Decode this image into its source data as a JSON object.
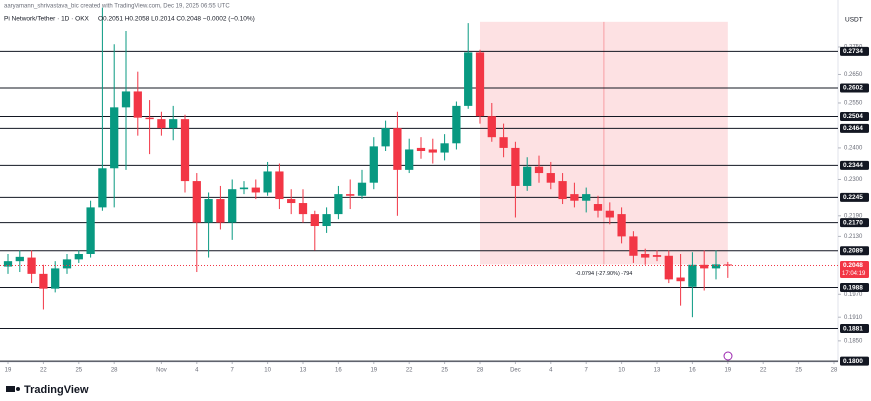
{
  "chart_data": {
    "type": "candlestick",
    "watermark": "aaryamann_shrivastava_bic created with TradingView.com, Dec 19, 2025 06:55 UTC",
    "title": "Pi Network/Tether · 1D · OKX",
    "quote": "O0.2051 H0.2058 L0.2014 C0.2048 −0.0002 (−0.10%)",
    "currency": "USDT",
    "brand": "TradingView",
    "log_scale": true,
    "up_color": "#089981",
    "down_color": "#f23645",
    "ylim": [
      0.1798,
      0.293
    ],
    "yticks": [
      {
        "value": 0.275,
        "label": "0.2750"
      },
      {
        "value": 0.265,
        "label": "0.2650"
      },
      {
        "value": 0.255,
        "label": "0.2550"
      },
      {
        "value": 0.24,
        "label": "0.2400"
      },
      {
        "value": 0.23,
        "label": "0.2300"
      },
      {
        "value": 0.219,
        "label": "0.2190"
      },
      {
        "value": 0.213,
        "label": "0.2130"
      },
      {
        "value": 0.197,
        "label": "0.1970"
      },
      {
        "value": 0.191,
        "label": "0.1910"
      },
      {
        "value": 0.185,
        "label": "0.1850"
      }
    ],
    "xlim": [
      "2025-10-19",
      "2025-12-28"
    ],
    "xticks": [
      {
        "value": "2025-10-19",
        "label": "19"
      },
      {
        "value": "2025-10-22",
        "label": "22"
      },
      {
        "value": "2025-10-25",
        "label": "25"
      },
      {
        "value": "2025-10-28",
        "label": "28"
      },
      {
        "value": "2025-11-01",
        "label": "Nov"
      },
      {
        "value": "2025-11-04",
        "label": "4"
      },
      {
        "value": "2025-11-07",
        "label": "7"
      },
      {
        "value": "2025-11-10",
        "label": "10"
      },
      {
        "value": "2025-11-13",
        "label": "13"
      },
      {
        "value": "2025-11-16",
        "label": "16"
      },
      {
        "value": "2025-11-19",
        "label": "19"
      },
      {
        "value": "2025-11-22",
        "label": "22"
      },
      {
        "value": "2025-11-25",
        "label": "25"
      },
      {
        "value": "2025-11-28",
        "label": "28"
      },
      {
        "value": "2025-12-01",
        "label": "Dec"
      },
      {
        "value": "2025-12-04",
        "label": "4"
      },
      {
        "value": "2025-12-07",
        "label": "7"
      },
      {
        "value": "2025-12-10",
        "label": "10"
      },
      {
        "value": "2025-12-13",
        "label": "13"
      },
      {
        "value": "2025-12-16",
        "label": "16"
      },
      {
        "value": "2025-12-19",
        "label": "19"
      },
      {
        "value": "2025-12-22",
        "label": "22"
      },
      {
        "value": "2025-12-25",
        "label": "25"
      },
      {
        "value": "2025-12-28",
        "label": "28"
      }
    ],
    "start": "2025-10-19",
    "open": [
      0.2045,
      0.206,
      0.207,
      0.2025,
      0.1985,
      0.204,
      0.2065,
      0.208,
      0.2215,
      0.2335,
      0.2535,
      0.259,
      0.25,
      0.2495,
      0.2465,
      0.2495,
      0.2295,
      0.217,
      0.224,
      0.217,
      0.227,
      0.2275,
      0.226,
      0.2325,
      0.224,
      0.2228,
      0.2195,
      0.216,
      0.2195,
      0.2255,
      0.225,
      0.229,
      0.2405,
      0.2465,
      0.233,
      0.24,
      0.2395,
      0.2385,
      0.2415,
      0.254,
      0.273,
      0.2505,
      0.2435,
      0.24,
      0.228,
      0.234,
      0.232,
      0.2295,
      0.2255,
      0.2235,
      0.2225,
      0.2205,
      0.2195,
      0.213,
      0.208,
      0.2077,
      0.2075,
      0.2015,
      0.199,
      0.205,
      0.204,
      0.2051
    ],
    "high": [
      0.208,
      0.209,
      0.209,
      0.205,
      0.206,
      0.208,
      0.209,
      0.2235,
      0.29,
      0.276,
      0.281,
      0.266,
      0.256,
      0.252,
      0.254,
      0.251,
      0.232,
      0.226,
      0.228,
      0.23,
      0.2295,
      0.23,
      0.2355,
      0.235,
      0.227,
      0.227,
      0.2205,
      0.2215,
      0.228,
      0.23,
      0.233,
      0.2435,
      0.249,
      0.252,
      0.243,
      0.2435,
      0.243,
      0.2445,
      0.2555,
      0.284,
      0.274,
      0.255,
      0.248,
      0.242,
      0.237,
      0.2375,
      0.2355,
      0.232,
      0.229,
      0.2275,
      0.225,
      0.223,
      0.2215,
      0.2145,
      0.2095,
      0.209,
      0.209,
      0.208,
      0.2085,
      0.209,
      0.209,
      0.2058
    ],
    "low": [
      0.2025,
      0.203,
      0.2,
      0.193,
      0.1975,
      0.2025,
      0.2055,
      0.207,
      0.2205,
      0.2215,
      0.233,
      0.244,
      0.238,
      0.244,
      0.2425,
      0.226,
      0.203,
      0.207,
      0.215,
      0.212,
      0.2255,
      0.224,
      0.225,
      0.221,
      0.2195,
      0.217,
      0.209,
      0.214,
      0.218,
      0.221,
      0.224,
      0.227,
      0.239,
      0.219,
      0.232,
      0.2365,
      0.235,
      0.236,
      0.2395,
      0.253,
      0.248,
      0.242,
      0.237,
      0.2185,
      0.2265,
      0.229,
      0.227,
      0.2225,
      0.2215,
      0.22,
      0.2185,
      0.2165,
      0.211,
      0.2055,
      0.205,
      0.206,
      0.2,
      0.194,
      0.191,
      0.198,
      0.201,
      0.2014
    ],
    "close": [
      0.206,
      0.2072,
      0.2025,
      0.1985,
      0.204,
      0.2065,
      0.208,
      0.2215,
      0.2335,
      0.2535,
      0.259,
      0.25,
      0.2495,
      0.2465,
      0.2495,
      0.2295,
      0.217,
      0.224,
      0.217,
      0.227,
      0.2275,
      0.226,
      0.2325,
      0.224,
      0.2228,
      0.2195,
      0.216,
      0.2195,
      0.2255,
      0.225,
      0.229,
      0.2405,
      0.2465,
      0.233,
      0.2395,
      0.239,
      0.2385,
      0.2415,
      0.254,
      0.273,
      0.2505,
      0.2435,
      0.24,
      0.228,
      0.234,
      0.232,
      0.229,
      0.224,
      0.2235,
      0.2255,
      0.2205,
      0.2185,
      0.213,
      0.2075,
      0.207,
      0.2072,
      0.201,
      0.2005,
      0.205,
      0.204,
      0.2051,
      0.2048
    ],
    "levels": [
      {
        "value": 0.2734,
        "label": "0.2734"
      },
      {
        "value": 0.2602,
        "label": "0.2602"
      },
      {
        "value": 0.2504,
        "label": "0.2504"
      },
      {
        "value": 0.2464,
        "label": "0.2464"
      },
      {
        "value": 0.2344,
        "label": "0.2344"
      },
      {
        "value": 0.2245,
        "label": "0.2245"
      },
      {
        "value": 0.217,
        "label": "0.2170"
      },
      {
        "value": 0.2089,
        "label": "0.2089"
      },
      {
        "value": 0.1988,
        "label": "0.1988"
      },
      {
        "value": 0.1881,
        "label": "0.1881"
      },
      {
        "value": 0.18,
        "label": "0.1800"
      }
    ],
    "last_price": {
      "value": 0.2048,
      "label": "0.2048",
      "countdown": "17:04:19"
    },
    "measure": {
      "from": "2025-11-28",
      "to": "2025-12-19",
      "high": 0.2845,
      "low": 0.2051,
      "label": "-0.0794 (-27.90%) -794"
    }
  }
}
